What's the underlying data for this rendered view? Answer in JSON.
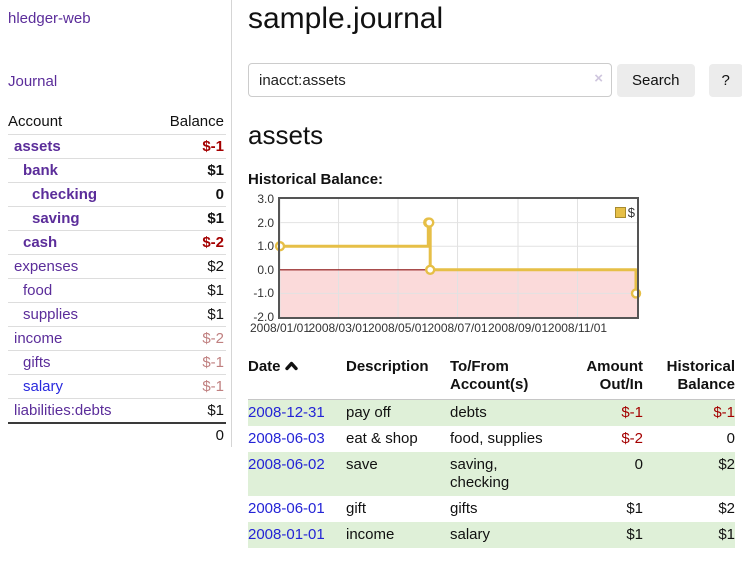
{
  "app": {
    "brand": "hledger-web",
    "nav": {
      "journal": "Journal"
    }
  },
  "colors": {
    "purple_link": "#5b2d9a",
    "blue_link": "#2a2ade",
    "negative_strong": "#a40000",
    "negative_faded": "#c08080",
    "row_stripe_green": "#dff0d8",
    "chart_gold": "#e6bf47"
  },
  "sidebar": {
    "header": {
      "account": "Account",
      "balance": "Balance"
    },
    "rows": [
      {
        "name": "assets",
        "balance": "$-1"
      },
      {
        "name": "bank",
        "balance": "$1"
      },
      {
        "name": "checking",
        "balance": "0"
      },
      {
        "name": "saving",
        "balance": "$1"
      },
      {
        "name": "cash",
        "balance": "$-2"
      },
      {
        "name": "expenses",
        "balance": "$2"
      },
      {
        "name": "food",
        "balance": "$1"
      },
      {
        "name": "supplies",
        "balance": "$1"
      },
      {
        "name": "income",
        "balance": "$-2"
      },
      {
        "name": "gifts",
        "balance": "$-1"
      },
      {
        "name": "salary",
        "balance": "$-1"
      },
      {
        "name": "liabilities:debts",
        "balance": "$1"
      }
    ],
    "total": "0"
  },
  "main": {
    "title": "sample.journal",
    "search": {
      "value": "inacct:assets",
      "clear_icon": "×",
      "button": "Search",
      "help": "?"
    },
    "account_heading": "assets",
    "chart_heading": "Historical Balance:"
  },
  "chart_data": {
    "type": "line",
    "step": true,
    "title": "Historical Balance:",
    "series": [
      {
        "name": "$",
        "color": "#e6bf47",
        "points": [
          [
            "2008-01-01",
            1
          ],
          [
            "2008-06-01",
            2
          ],
          [
            "2008-06-02",
            2
          ],
          [
            "2008-06-03",
            0
          ],
          [
            "2008-12-31",
            -1
          ]
        ]
      }
    ],
    "xlim": [
      "2008-01-01",
      "2009-01-01"
    ],
    "ylim": [
      -2,
      3
    ],
    "x_ticks": [
      "2008/01/01",
      "2008/03/01",
      "2008/05/01",
      "2008/07/01",
      "2008/09/01",
      "2008/11/01"
    ],
    "y_ticks": [
      "3.0",
      "2.0",
      "1.0",
      "0.0",
      "-1.0",
      "-2.0"
    ],
    "grid": true,
    "legend_position": "top-right",
    "negative_fill": "#fbdada",
    "zero_line_color": "#8b1111",
    "grid_color": "#e2e2e2",
    "border_color": "#555555"
  },
  "register": {
    "headers": {
      "date": "Date",
      "description": "Description",
      "accounts": "To/From Account(s)",
      "amount": "Amount Out/In",
      "balance": "Historical Balance"
    },
    "rows": [
      {
        "date": "2008-12-31",
        "description": "pay off",
        "accounts": "debts",
        "amount": "$-1",
        "balance": "$-1"
      },
      {
        "date": "2008-06-03",
        "description": "eat & shop",
        "accounts": "food, supplies",
        "amount": "$-2",
        "balance": "0"
      },
      {
        "date": "2008-06-02",
        "description": "save",
        "accounts": "saving, checking",
        "amount": "0",
        "balance": "$2"
      },
      {
        "date": "2008-06-01",
        "description": "gift",
        "accounts": "gifts",
        "amount": "$1",
        "balance": "$2"
      },
      {
        "date": "2008-01-01",
        "description": "income",
        "accounts": "salary",
        "amount": "$1",
        "balance": "$1"
      }
    ]
  }
}
